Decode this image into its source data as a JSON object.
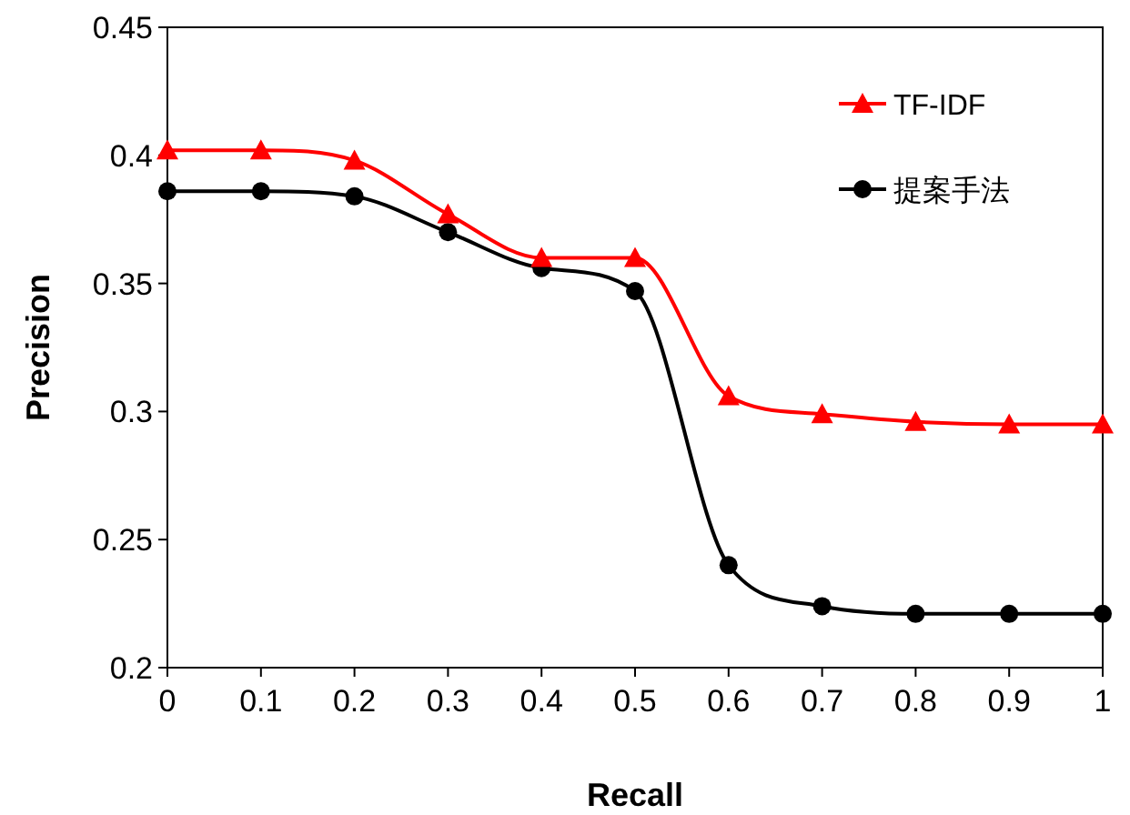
{
  "chart_data": {
    "type": "line",
    "xlabel": "Recall",
    "ylabel": "Precision",
    "x": [
      0,
      0.1,
      0.2,
      0.3,
      0.4,
      0.5,
      0.6,
      0.7,
      0.8,
      0.9,
      1
    ],
    "xlim": [
      0,
      1
    ],
    "xticks": [
      0,
      0.1,
      0.2,
      0.3,
      0.4,
      0.5,
      0.6,
      0.7,
      0.8,
      0.9,
      1
    ],
    "ylim": [
      0.2,
      0.45
    ],
    "yticks": [
      0.2,
      0.25,
      0.3,
      0.35,
      0.4,
      0.45
    ],
    "legend": "top right",
    "series": [
      {
        "name": "TF-IDF",
        "color": "#ff0000",
        "marker": "triangle",
        "values": [
          0.402,
          0.402,
          0.398,
          0.377,
          0.36,
          0.36,
          0.306,
          0.299,
          0.296,
          0.295,
          0.295
        ]
      },
      {
        "name": "提案手法",
        "color": "#000000",
        "marker": "circle",
        "values": [
          0.386,
          0.386,
          0.384,
          0.37,
          0.356,
          0.347,
          0.24,
          0.224,
          0.221,
          0.221,
          0.221
        ]
      }
    ]
  }
}
